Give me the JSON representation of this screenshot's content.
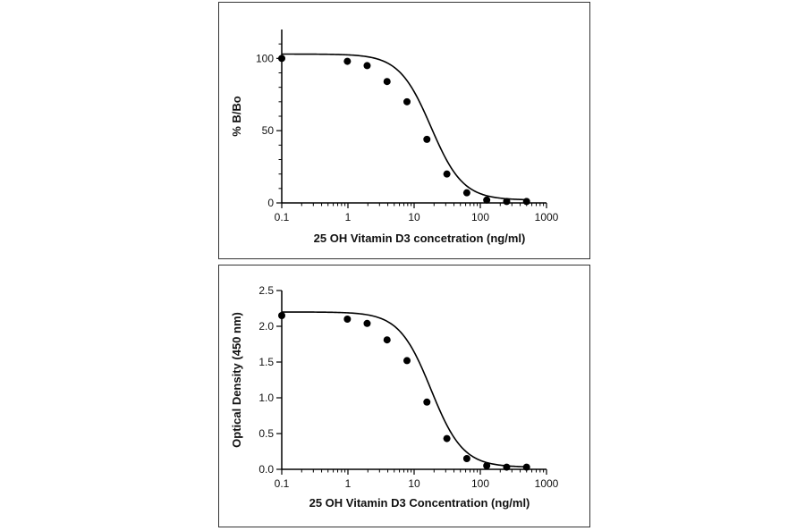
{
  "chart_data": [
    {
      "type": "scatter",
      "xlabel": "25 OH Vitamin D3 concetration (ng/ml)",
      "ylabel": "% B/Bo",
      "xscale": "log",
      "xlim": [
        0.1,
        1000
      ],
      "ylim": [
        0,
        120
      ],
      "xticks": [
        0.1,
        1,
        10,
        100,
        1000
      ],
      "xtick_labels": [
        "0.1",
        "1",
        "10",
        "100",
        "1000"
      ],
      "yticks": [
        0,
        50,
        100
      ],
      "ytick_labels": [
        "0",
        "50",
        "100"
      ],
      "grid": false,
      "x": [
        0.1,
        0.98,
        1.95,
        3.9,
        7.8,
        15.6,
        31.25,
        62.5,
        125,
        250,
        500
      ],
      "y": [
        100,
        98,
        95,
        84,
        70,
        44,
        20,
        7,
        2,
        1,
        1
      ],
      "fit": {
        "top": 103,
        "bottom": 2,
        "ec50": 18,
        "hill": 1.8
      }
    },
    {
      "type": "scatter",
      "xlabel": "25 OH Vitamin D3 Concentration (ng/ml)",
      "ylabel": "Optical Density (450 nm)",
      "xscale": "log",
      "xlim": [
        0.1,
        1000
      ],
      "ylim": [
        0,
        2.5
      ],
      "xticks": [
        0.1,
        1,
        10,
        100,
        1000
      ],
      "xtick_labels": [
        "0.1",
        "1",
        "10",
        "100",
        "1000"
      ],
      "yticks": [
        0,
        0.5,
        1.0,
        1.5,
        2.0,
        2.5
      ],
      "ytick_labels": [
        "0.0",
        "0.5",
        "1.0",
        "1.5",
        "2.0",
        "2.5"
      ],
      "grid": false,
      "x": [
        0.1,
        0.98,
        1.95,
        3.9,
        7.8,
        15.6,
        31.25,
        62.5,
        125,
        250,
        500
      ],
      "y": [
        2.15,
        2.1,
        2.04,
        1.81,
        1.52,
        0.94,
        0.43,
        0.15,
        0.05,
        0.03,
        0.03
      ],
      "fit": {
        "top": 2.2,
        "bottom": 0.03,
        "ec50": 18,
        "hill": 1.8
      }
    }
  ]
}
